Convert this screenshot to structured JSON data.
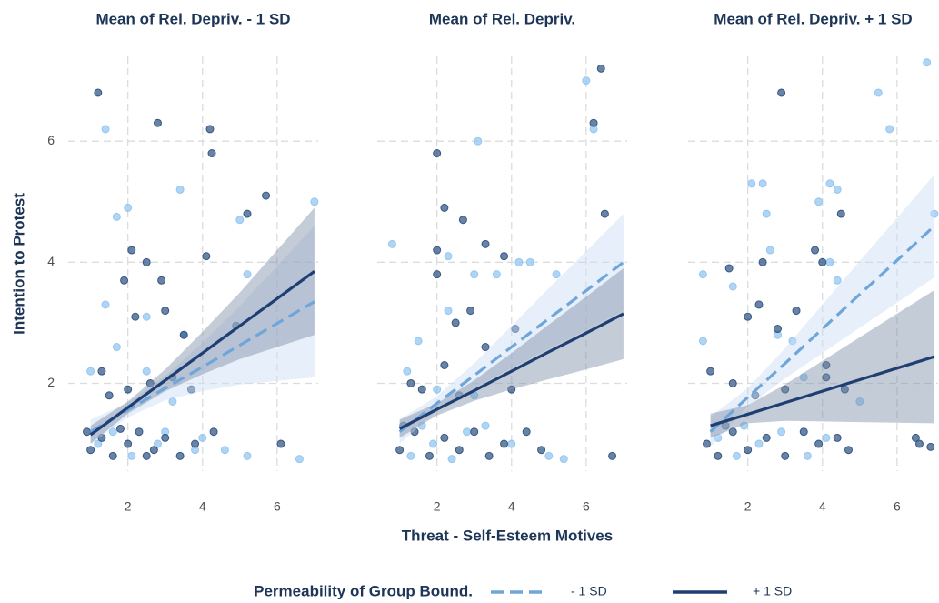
{
  "x_label": "Threat - Self-Esteem Motives",
  "y_label": "Intention to Protest",
  "legend": {
    "title": "Permeability of Group Bound.",
    "entries": [
      {
        "name": "- 1 SD",
        "color": "#6ea6da",
        "dashed": true
      },
      {
        "name": "+ 1 SD",
        "color": "#1f3f73",
        "dashed": false
      }
    ]
  },
  "chart_data": [
    {
      "type": "scatter",
      "title": "Mean of Rel. Depriv. - 1 SD",
      "xlim": [
        0.4,
        7.1
      ],
      "ylim": [
        0.55,
        7.4
      ],
      "xticks": [
        2,
        4,
        6
      ],
      "yticks": [
        2,
        4,
        6
      ],
      "grid": true,
      "series": [
        {
          "color": "#8ec3f0",
          "x": [
            1.4,
            3.4,
            2.0,
            1.7,
            7.0,
            5.0,
            5.2,
            1.4,
            2.5,
            3.5,
            1.7,
            1.0,
            2.5,
            3.2,
            1.2,
            2.1,
            3.0,
            3.8,
            4.6,
            5.2,
            6.6,
            2.8,
            1.6,
            4.0
          ],
          "values": [
            6.2,
            5.2,
            4.9,
            4.75,
            5.0,
            4.7,
            3.8,
            3.3,
            3.1,
            2.8,
            2.6,
            2.2,
            2.2,
            1.7,
            1.0,
            0.8,
            1.2,
            0.9,
            0.9,
            0.8,
            0.75,
            1.0,
            1.2,
            1.1
          ],
          "fit": {
            "x": [
              1,
              2,
              3,
              4,
              5,
              6,
              7
            ],
            "values": [
              1.2,
              1.56,
              1.92,
              2.27,
              2.63,
              2.99,
              3.35
            ],
            "lower": [
              1.0,
              1.44,
              1.72,
              1.87,
              1.98,
              2.04,
              2.1
            ],
            "upper": [
              1.4,
              1.68,
              2.12,
              2.67,
              3.28,
              3.94,
              4.6
            ],
            "ribbon_color": "#c9dcf3"
          }
        },
        {
          "color": "#2a4e7e",
          "x": [
            1.2,
            4.2,
            4.25,
            2.8,
            5.7,
            5.2,
            4.1,
            2.1,
            2.5,
            2.9,
            1.9,
            2.2,
            3.0,
            3.5,
            4.9,
            1.3,
            2.0,
            2.6,
            3.2,
            3.7,
            1.0,
            1.3,
            1.6,
            2.0,
            2.3,
            2.7,
            3.0,
            3.4,
            3.8,
            4.3,
            6.1,
            0.9,
            1.8,
            2.5,
            1.5
          ],
          "values": [
            6.8,
            6.2,
            5.8,
            6.3,
            5.1,
            4.8,
            4.1,
            4.2,
            4.0,
            3.7,
            3.7,
            3.1,
            3.2,
            2.8,
            2.95,
            2.2,
            1.9,
            2.0,
            2.1,
            1.9,
            0.9,
            1.1,
            0.8,
            1.0,
            1.2,
            0.9,
            1.1,
            0.8,
            1.0,
            1.2,
            1.0,
            1.2,
            1.25,
            0.8,
            1.8
          ],
          "fit": {
            "x": [
              1,
              2,
              3,
              4,
              5,
              6,
              7
            ],
            "values": [
              1.15,
              1.6,
              2.05,
              2.5,
              2.95,
              3.4,
              3.85
            ],
            "lower": [
              1.0,
              1.5,
              1.87,
              2.15,
              2.4,
              2.6,
              2.8
            ],
            "upper": [
              1.3,
              1.7,
              2.23,
              2.85,
              3.5,
              4.2,
              4.9
            ],
            "ribbon_color": "#7d8ea8"
          }
        }
      ]
    },
    {
      "type": "scatter",
      "title": "Mean of Rel. Depriv.",
      "xlim": [
        0.4,
        7.1
      ],
      "ylim": [
        0.55,
        7.4
      ],
      "xticks": [
        2,
        4,
        6
      ],
      "yticks": [
        2,
        4,
        6
      ],
      "grid": true,
      "series": [
        {
          "color": "#8ec3f0",
          "x": [
            3.1,
            6.0,
            6.2,
            0.8,
            2.3,
            3.0,
            3.6,
            4.2,
            4.5,
            5.2,
            2.3,
            1.5,
            1.2,
            2.0,
            3.0,
            2.8,
            1.3,
            1.9,
            2.4,
            3.3,
            4.0,
            5.0,
            5.4,
            1.6
          ],
          "values": [
            6.0,
            7.0,
            6.2,
            4.3,
            4.1,
            3.8,
            3.8,
            4.0,
            4.0,
            3.8,
            3.2,
            2.7,
            2.2,
            1.9,
            1.8,
            1.2,
            0.8,
            1.0,
            0.75,
            1.3,
            1.0,
            0.8,
            0.75,
            1.3
          ],
          "fit": {
            "x": [
              1,
              2,
              3,
              4,
              5,
              6,
              7
            ],
            "values": [
              1.2,
              1.67,
              2.13,
              2.6,
              3.07,
              3.53,
              4.0
            ],
            "lower": [
              1.0,
              1.55,
              1.93,
              2.25,
              2.57,
              2.88,
              3.2
            ],
            "upper": [
              1.4,
              1.79,
              2.33,
              2.95,
              3.57,
              4.18,
              4.8
            ],
            "ribbon_color": "#c9dcf3"
          }
        },
        {
          "color": "#2a4e7e",
          "x": [
            2.0,
            6.4,
            6.2,
            6.5,
            2.2,
            2.0,
            2.7,
            2.9,
            3.3,
            3.8,
            2.0,
            2.5,
            3.3,
            4.1,
            4.0,
            2.2,
            1.3,
            2.6,
            1.0,
            1.4,
            1.8,
            2.2,
            2.6,
            3.0,
            3.4,
            3.8,
            4.4,
            4.8,
            6.7,
            1.1,
            1.6
          ],
          "values": [
            5.8,
            7.2,
            6.3,
            4.8,
            4.9,
            4.2,
            4.7,
            3.2,
            4.3,
            4.1,
            3.8,
            3.0,
            2.6,
            2.9,
            1.9,
            2.3,
            2.0,
            1.8,
            0.9,
            1.2,
            0.8,
            1.1,
            0.9,
            1.2,
            0.8,
            1.0,
            1.2,
            0.9,
            0.8,
            1.3,
            1.9
          ],
          "fit": {
            "x": [
              1,
              2,
              3,
              4,
              5,
              6,
              7
            ],
            "values": [
              1.25,
              1.57,
              1.88,
              2.2,
              2.52,
              2.83,
              3.15
            ],
            "lower": [
              1.1,
              1.47,
              1.71,
              1.9,
              2.07,
              2.23,
              2.4
            ],
            "upper": [
              1.4,
              1.67,
              2.05,
              2.5,
              2.97,
              3.43,
              3.9
            ],
            "ribbon_color": "#7d8ea8"
          }
        }
      ]
    },
    {
      "type": "scatter",
      "title": "Mean of Rel. Depriv. + 1 SD",
      "xlim": [
        0.4,
        7.1
      ],
      "ylim": [
        0.55,
        7.4
      ],
      "xticks": [
        2,
        4,
        6
      ],
      "yticks": [
        2,
        4,
        6
      ],
      "grid": true,
      "series": [
        {
          "color": "#8ec3f0",
          "x": [
            6.8,
            5.5,
            5.8,
            2.1,
            2.4,
            4.2,
            4.4,
            3.9,
            2.5,
            7.0,
            4.2,
            0.8,
            1.6,
            2.6,
            4.4,
            2.8,
            3.2,
            0.8,
            3.5,
            5.0,
            1.2,
            1.7,
            2.3,
            2.9,
            3.6,
            4.1,
            1.9
          ],
          "values": [
            7.3,
            6.8,
            6.2,
            5.3,
            5.3,
            5.3,
            5.2,
            5.0,
            4.8,
            4.8,
            4.0,
            3.8,
            3.6,
            4.2,
            3.7,
            2.8,
            2.7,
            2.7,
            2.1,
            1.7,
            1.1,
            0.8,
            1.0,
            1.2,
            0.8,
            1.1,
            1.3
          ],
          "fit": {
            "x": [
              1,
              2,
              3,
              4,
              5,
              6,
              7
            ],
            "values": [
              1.2,
              1.77,
              2.33,
              2.9,
              3.47,
              4.03,
              4.6
            ],
            "lower": [
              0.95,
              1.62,
              2.08,
              2.5,
              2.92,
              3.33,
              3.75
            ],
            "upper": [
              1.45,
              1.92,
              2.58,
              3.3,
              4.02,
              4.73,
              5.45
            ],
            "ribbon_color": "#c9dcf3"
          }
        },
        {
          "color": "#2a4e7e",
          "x": [
            2.9,
            4.5,
            3.8,
            4.0,
            2.4,
            1.5,
            2.0,
            2.3,
            2.8,
            3.3,
            4.1,
            4.1,
            1.0,
            1.6,
            2.2,
            3.0,
            4.6,
            0.9,
            1.2,
            1.6,
            2.0,
            2.5,
            3.0,
            3.5,
            3.9,
            4.4,
            4.7,
            6.5,
            6.9,
            6.6,
            1.4
          ],
          "values": [
            6.8,
            4.8,
            4.2,
            4.0,
            4.0,
            3.9,
            3.1,
            3.3,
            2.9,
            3.2,
            2.3,
            2.1,
            2.2,
            2.0,
            1.8,
            1.9,
            1.9,
            1.0,
            0.8,
            1.2,
            0.9,
            1.1,
            0.8,
            1.2,
            1.0,
            1.1,
            0.9,
            1.1,
            0.95,
            1.0,
            1.3
          ],
          "fit": {
            "x": [
              1,
              2,
              3,
              4,
              5,
              6,
              7
            ],
            "values": [
              1.3,
              1.49,
              1.68,
              1.87,
              2.06,
              2.25,
              2.44
            ],
            "lower": [
              1.1,
              1.34,
              1.38,
              1.37,
              1.36,
              1.35,
              1.34
            ],
            "upper": [
              1.5,
              1.64,
              1.98,
              2.37,
              2.76,
              3.15,
              3.54
            ],
            "ribbon_color": "#7d8ea8"
          }
        }
      ]
    }
  ]
}
